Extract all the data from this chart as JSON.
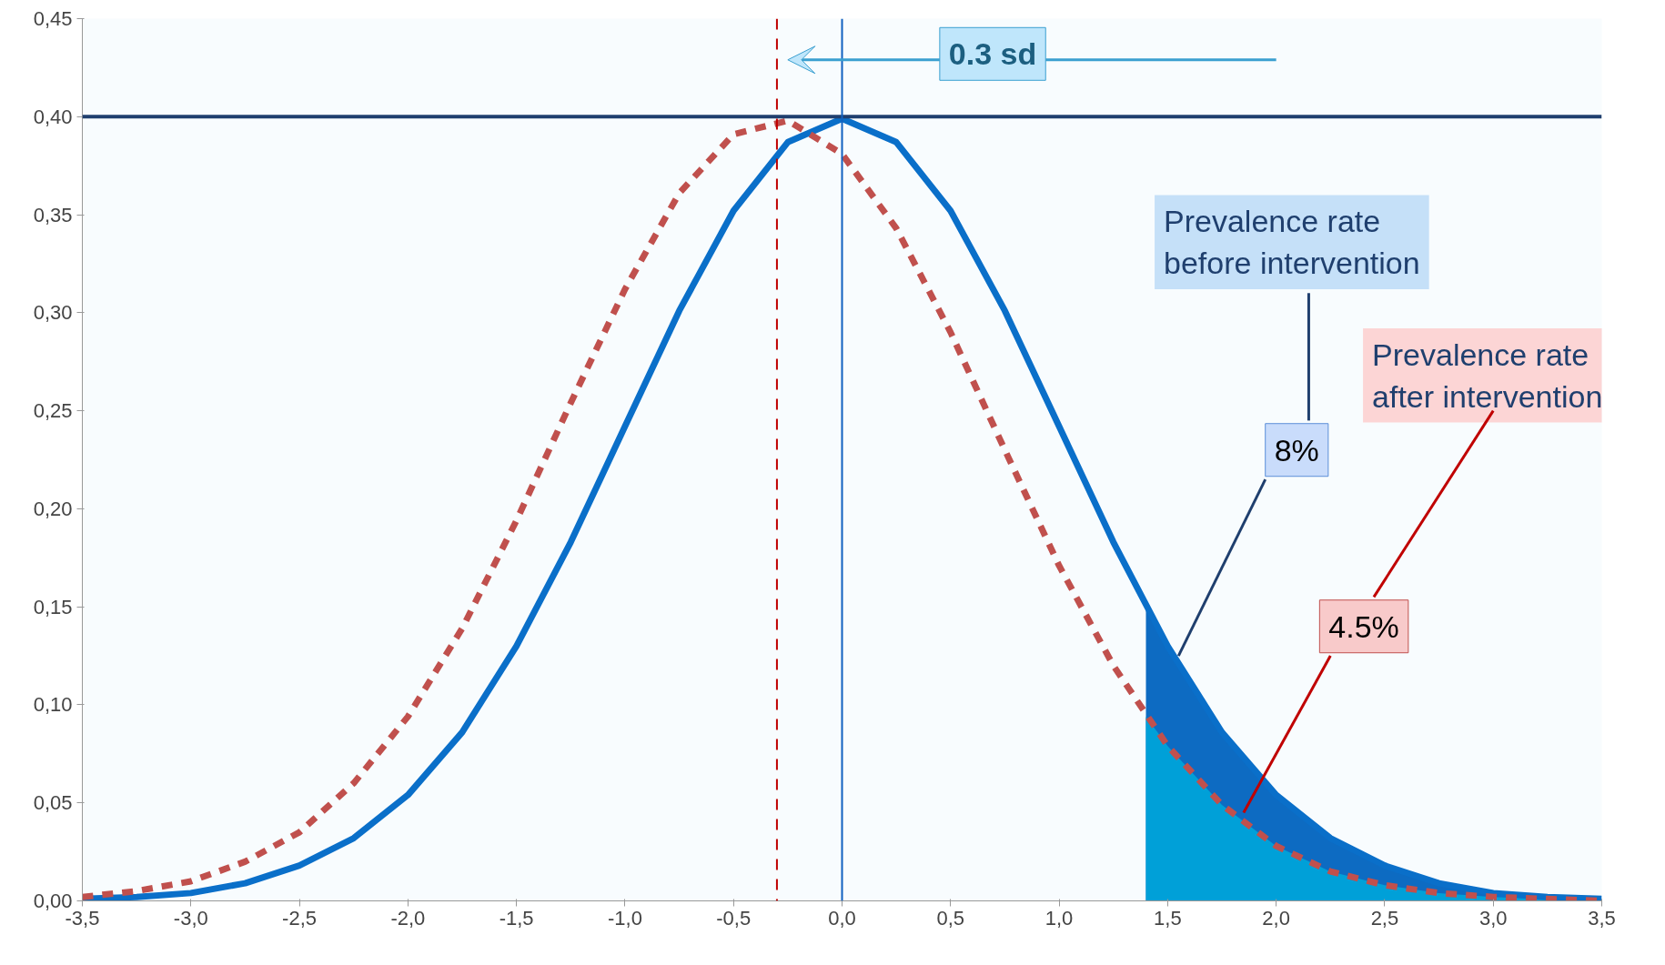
{
  "chart_data": {
    "type": "line",
    "x": [
      -3.5,
      -3.25,
      -3,
      -2.75,
      -2.5,
      -2.25,
      -2,
      -1.75,
      -1.5,
      -1.25,
      -1,
      -0.75,
      -0.5,
      -0.25,
      0,
      0.25,
      0.5,
      0.75,
      1,
      1.25,
      1.5,
      1.75,
      2,
      2.25,
      2.5,
      2.75,
      3,
      3.25,
      3.5
    ],
    "series": [
      {
        "type": "area",
        "color": "#0d6bc2",
        "x": [
          1.4,
          1.5,
          1.75,
          2,
          2.25,
          2.5,
          2.75,
          3,
          3.25,
          3.5
        ],
        "values": [
          0.15,
          0.13,
          0.086,
          0.054,
          0.032,
          0.018,
          0.009,
          0.004,
          0.002,
          0.001
        ]
      },
      {
        "type": "area",
        "color": "#00a0d8",
        "x": [
          1.4,
          1.5,
          1.75,
          2,
          2.25,
          2.5,
          2.75,
          3,
          3.25,
          3.5
        ],
        "values": [
          0.094,
          0.079,
          0.049,
          0.028,
          0.015,
          0.008,
          0.004,
          0.002,
          0.001,
          0.0
        ]
      },
      {
        "color": "#0a6fc9",
        "line_style": "solid",
        "values": [
          0.001,
          0.002,
          0.004,
          0.009,
          0.018,
          0.032,
          0.054,
          0.086,
          0.13,
          0.183,
          0.242,
          0.301,
          0.352,
          0.387,
          0.399,
          0.387,
          0.352,
          0.301,
          0.242,
          0.183,
          0.13,
          0.086,
          0.054,
          0.032,
          0.018,
          0.009,
          0.004,
          0.002,
          0.001
        ]
      },
      {
        "color": "#c0504d",
        "line_style": "dashed",
        "values": [
          0.002,
          0.005,
          0.01,
          0.02,
          0.035,
          0.06,
          0.094,
          0.139,
          0.194,
          0.254,
          0.312,
          0.361,
          0.391,
          0.398,
          0.381,
          0.343,
          0.29,
          0.23,
          0.171,
          0.12,
          0.079,
          0.049,
          0.028,
          0.015,
          0.008,
          0.004,
          0.002,
          0.001,
          0.0
        ]
      }
    ],
    "xlim": [
      -3.5,
      3.5
    ],
    "ylim": [
      0,
      0.45
    ],
    "xticks": [
      {
        "value": -3.5,
        "label": "-3,5"
      },
      {
        "value": -3,
        "label": "-3,0"
      },
      {
        "value": -2.5,
        "label": "-2,5"
      },
      {
        "value": -2,
        "label": "-2,0"
      },
      {
        "value": -1.5,
        "label": "-1,5"
      },
      {
        "value": -1,
        "label": "-1,0"
      },
      {
        "value": -0.5,
        "label": "-0,5"
      },
      {
        "value": 0,
        "label": "0,0"
      },
      {
        "value": 0.5,
        "label": "0,5"
      },
      {
        "value": 1,
        "label": "1,0"
      },
      {
        "value": 1.5,
        "label": "1,5"
      },
      {
        "value": 2,
        "label": "2,0"
      },
      {
        "value": 2.5,
        "label": "2,5"
      },
      {
        "value": 3,
        "label": "3,0"
      },
      {
        "value": 3.5,
        "label": "3,5"
      }
    ],
    "yticks": [
      {
        "value": 0,
        "label": "0,00"
      },
      {
        "value": 0.05,
        "label": "0,05"
      },
      {
        "value": 0.1,
        "label": "0,10"
      },
      {
        "value": 0.15,
        "label": "0,15"
      },
      {
        "value": 0.2,
        "label": "0,20"
      },
      {
        "value": 0.25,
        "label": "0,25"
      },
      {
        "value": 0.3,
        "label": "0,30"
      },
      {
        "value": 0.35,
        "label": "0,35"
      },
      {
        "value": 0.4,
        "label": "0,40"
      },
      {
        "value": 0.45,
        "label": "0,45"
      }
    ],
    "grid": false,
    "ref_lines": [
      {
        "axis": "y",
        "value": 0.4,
        "color": "#1f3f6e",
        "line_style": "solid"
      },
      {
        "axis": "x",
        "value": 0,
        "color": "#1060c0",
        "line_style": "solid"
      },
      {
        "axis": "x",
        "value": -0.3,
        "color": "#c00000",
        "line_style": "dashed"
      }
    ],
    "annotations": [
      "0.3 sd",
      "Prevalence rate\nbefore intervention",
      "Prevalence rate\nafter intervention",
      {
        "text": "8%",
        "x": 1.55,
        "y": 0.125
      },
      {
        "text": "4.5%",
        "x": 1.85,
        "y": 0.045
      }
    ]
  }
}
